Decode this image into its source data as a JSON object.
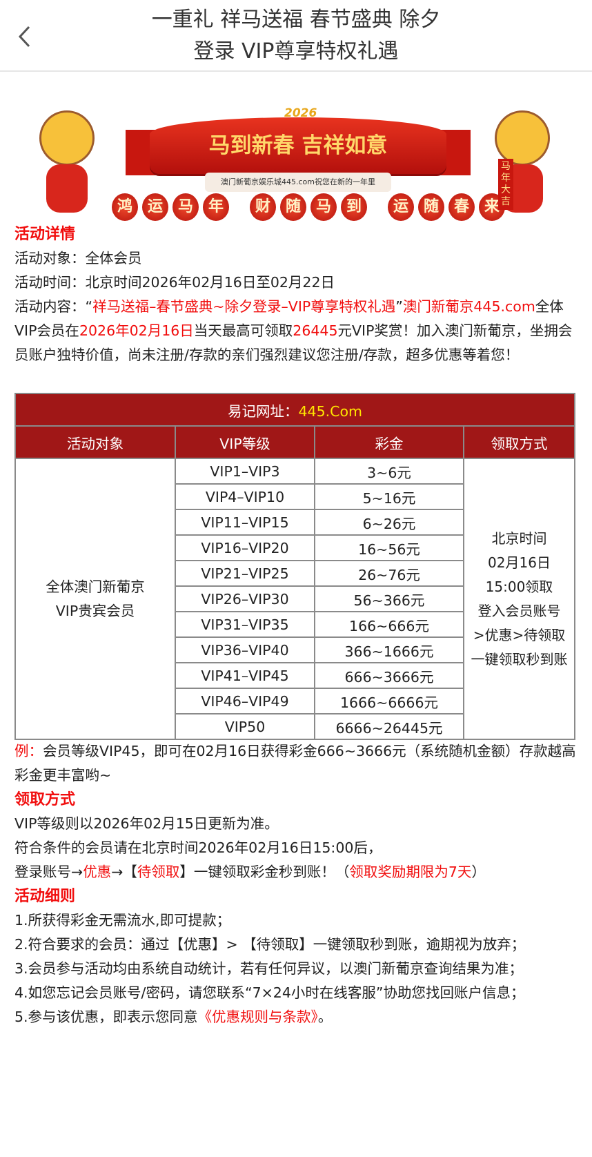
{
  "header": {
    "title_line1": "一重礼 祥马送福 春节盛典 除夕",
    "title_line2": "登录 VIP尊享特权礼遇",
    "back_icon": "chevron-left-icon"
  },
  "banner": {
    "year": "2026",
    "headline": "马到新春 吉祥如意",
    "subline": "澳门新葡京娱乐城445.com祝您在新的一年里",
    "lanterns": [
      [
        "鸿",
        "运",
        "马",
        "年"
      ],
      [
        "财",
        "随",
        "马",
        "到"
      ],
      [
        "运",
        "随",
        "春",
        "来"
      ]
    ],
    "scroll_text": "马年大吉"
  },
  "details": {
    "heading": "活动详情",
    "target": "活动对象：全体会员",
    "time": "活动时间：北京时间2026年02月16日至02月22日",
    "content": {
      "p1": "活动内容：“",
      "p2": "祥马送福–春节盛典~除夕登录–VIP尊享特权礼遇",
      "p3": "”",
      "p4": "澳门新葡京445.com",
      "p5": "全体VIP会员在",
      "p6": "2026年02月16日",
      "p7": "当天最高可领取",
      "p8": "26445",
      "p9": "元VIP奖赏！加入澳门新葡京，坐拥会员账户独特价值，尚未注册/存款的亲们强烈建议您注册/存款，超多优惠等着您！"
    }
  },
  "table": {
    "site_label": "易记网址：",
    "site_value": "445.Com",
    "headers": [
      "活动对象",
      "VIP等级",
      "彩金",
      "领取方式"
    ],
    "target_line1": "全体澳门新葡京",
    "target_line2": "VIP贵宾会员",
    "rows": [
      [
        "VIP1–VIP3",
        "3~6元"
      ],
      [
        "VIP4–VIP10",
        "5~16元"
      ],
      [
        "VIP11–VIP15",
        "6~26元"
      ],
      [
        "VIP16–VIP20",
        "16~56元"
      ],
      [
        "VIP21–VIP25",
        "26~76元"
      ],
      [
        "VIP26–VIP30",
        "56~366元"
      ],
      [
        "VIP31–VIP35",
        "166~666元"
      ],
      [
        "VIP36–VIP40",
        "366~1666元"
      ],
      [
        "VIP41–VIP45",
        "666~3666元"
      ],
      [
        "VIP46–VIP49",
        "1666~6666元"
      ],
      [
        "VIP50",
        "6666~26445元"
      ]
    ],
    "method_lines": [
      "北京时间",
      "02月16日",
      "15:00领取",
      "登入会员账号",
      ">优惠>待领取",
      "一键领取秒到账"
    ]
  },
  "example": {
    "label": "例：",
    "text": "会员等级VIP45，即可在02月16日获得彩金666~3666元（系统随机金额）存款越高彩金更丰富哟~"
  },
  "claim": {
    "heading": "领取方式",
    "line1": "VIP等级则以2026年02月15日更新为准。",
    "line2": "符合条件的会员请在北京时间2026年02月16日15:00后，",
    "l3a": "登录账号→",
    "l3b": "优惠",
    "l3c": "→【",
    "l3d": "待领取",
    "l3e": "】一键领取彩金秒到账！（",
    "l3f": "领取奖励期限为7天",
    "l3g": "）"
  },
  "rules": {
    "heading": "活动细则",
    "items": [
      "1.所获得彩金无需流水,即可提款；",
      "2.符合要求的会员：通过【优惠】> 【待领取】一键领取秒到账，逾期视为放弃；",
      "3.会员参与活动均由系统自动统计，若有任何异议，以澳门新葡京查询结果为准；",
      "4.如您忘记会员账号/密码，请您联系“7×24小时在线客服”协助您找回账户信息；"
    ],
    "item5a": "5.参与该优惠，即表示您同意",
    "item5b": "《优惠规则与条款》",
    "item5c": "。"
  },
  "colors": {
    "accent_red": "#f10e0e",
    "table_header": "#a01717",
    "site_yellow": "#ffe600"
  }
}
